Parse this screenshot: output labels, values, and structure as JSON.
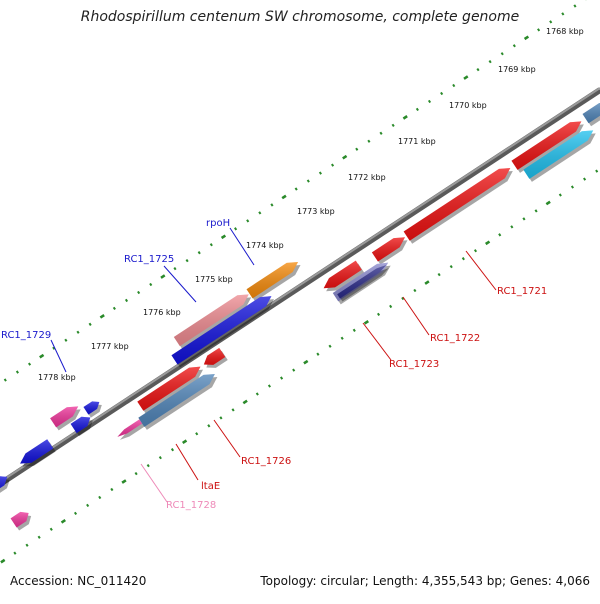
{
  "title": "Rhodospirillum centenum SW chromosome, complete genome",
  "footer": {
    "accession": "Accession: NC_011420",
    "summary": "Topology: circular; Length: 4,355,543 bp; Genes: 4,066"
  },
  "colors": {
    "backbone": "#808080",
    "tick": "#2a8a2a",
    "red": "#ee1111",
    "blue": "#1111dd",
    "steel": "#4f84b8",
    "cyan": "#1ec0ee",
    "pink": "#ee3399",
    "salmon": "#ee8a90",
    "orange": "#f58a0a",
    "navy": "#2a2a88",
    "label_red": "#cc1111",
    "label_blue": "#1a1acc",
    "label_pink": "#ee8ab8"
  },
  "scale": {
    "tick_labels": [
      "1768 kbp",
      "1769 kbp",
      "1770 kbp",
      "1771 kbp",
      "1772 kbp",
      "1773 kbp",
      "1774 kbp",
      "1775 kbp",
      "1776 kbp",
      "1777 kbp",
      "1778 kbp"
    ]
  },
  "gene_labels": [
    {
      "id": "rc1_1721",
      "text": "RC1_1721",
      "color": "label_red"
    },
    {
      "id": "rc1_1722",
      "text": "RC1_1722",
      "color": "label_red"
    },
    {
      "id": "rc1_1723",
      "text": "RC1_1723",
      "color": "label_red"
    },
    {
      "id": "rc1_1725",
      "text": "RC1_1725",
      "color": "label_blue"
    },
    {
      "id": "rpoh",
      "text": "rpoH",
      "color": "label_blue"
    },
    {
      "id": "rc1_1726",
      "text": "RC1_1726",
      "color": "label_red"
    },
    {
      "id": "itae",
      "text": "ltaE",
      "color": "label_red"
    },
    {
      "id": "rc1_1728",
      "text": "RC1_1728",
      "color": "label_pink"
    },
    {
      "id": "rc1_1729",
      "text": "RC1_1729",
      "color": "label_blue"
    }
  ]
}
